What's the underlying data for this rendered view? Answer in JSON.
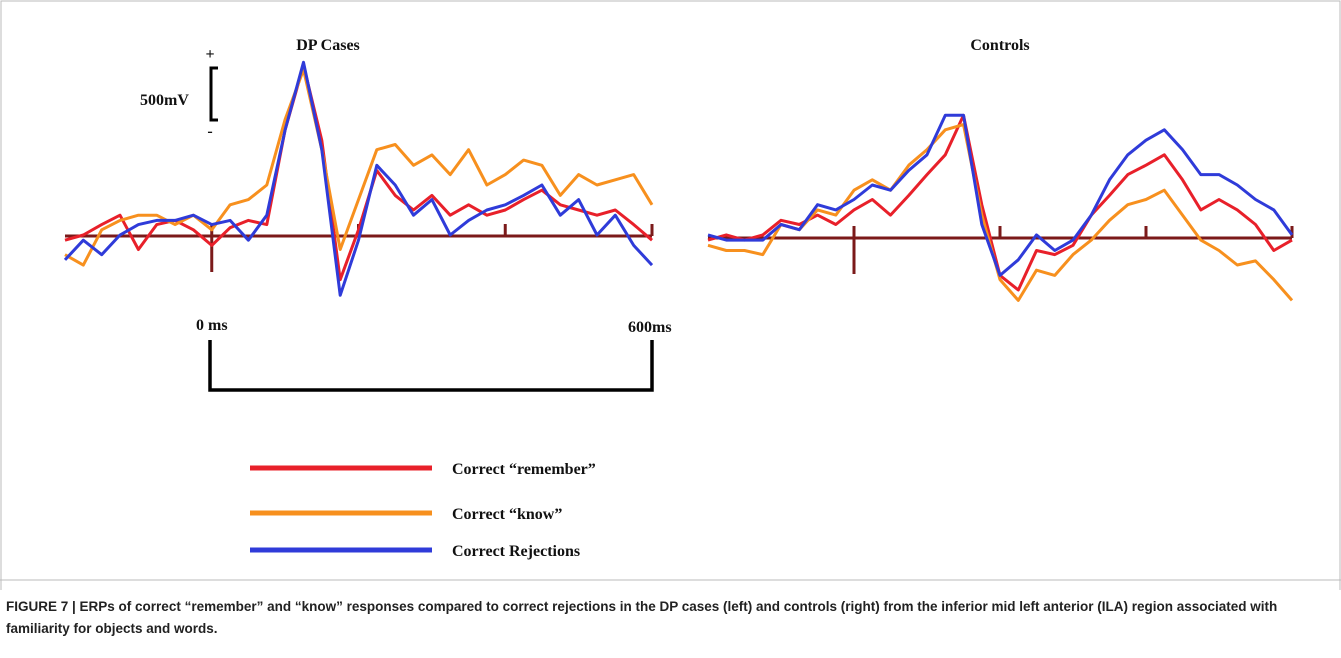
{
  "chart_data": [
    {
      "type": "line",
      "title": "DP Cases",
      "x": [
        -200,
        -175,
        -150,
        -125,
        -100,
        -75,
        -50,
        -25,
        0,
        25,
        50,
        75,
        100,
        125,
        150,
        175,
        200,
        225,
        250,
        275,
        300,
        325,
        350,
        375,
        400,
        425,
        450,
        475,
        500,
        525,
        550,
        575,
        600
      ],
      "xlim": [
        -200,
        600
      ],
      "xticks": [
        0,
        200,
        400,
        600
      ],
      "ylim": [
        -1000,
        2000
      ],
      "series": [
        {
          "name": "Correct “remember”",
          "color": "#e8202a",
          "values": [
            -40,
            10,
            110,
            200,
            -130,
            110,
            150,
            60,
            -90,
            80,
            150,
            110,
            1020,
            1640,
            920,
            -420,
            60,
            630,
            390,
            250,
            390,
            200,
            300,
            200,
            250,
            350,
            440,
            300,
            250,
            200,
            250,
            110,
            -40
          ]
        },
        {
          "name": "Correct “know”",
          "color": "#f7901e",
          "values": [
            -180,
            -280,
            60,
            150,
            200,
            200,
            110,
            200,
            60,
            300,
            350,
            490,
            1120,
            1600,
            830,
            -130,
            350,
            830,
            880,
            680,
            780,
            590,
            830,
            490,
            590,
            730,
            680,
            390,
            590,
            490,
            540,
            590,
            300
          ]
        },
        {
          "name": "Correct Rejections",
          "color": "#2f3bd9",
          "values": [
            -230,
            -40,
            -180,
            10,
            110,
            150,
            150,
            200,
            110,
            150,
            -40,
            200,
            1020,
            1670,
            830,
            -570,
            -40,
            680,
            490,
            200,
            350,
            10,
            150,
            250,
            300,
            390,
            490,
            200,
            350,
            10,
            200,
            -90,
            -280
          ]
        }
      ]
    },
    {
      "type": "line",
      "title": "Controls",
      "x": [
        -200,
        -175,
        -150,
        -125,
        -100,
        -75,
        -50,
        -25,
        0,
        25,
        50,
        75,
        100,
        125,
        150,
        175,
        200,
        225,
        250,
        275,
        300,
        325,
        350,
        375,
        400,
        425,
        450,
        475,
        500,
        525,
        550,
        575,
        600
      ],
      "xlim": [
        -200,
        600
      ],
      "xticks": [
        0,
        200,
        400,
        600
      ],
      "ylim": [
        -1000,
        2000
      ],
      "series": [
        {
          "name": "Correct “remember”",
          "color": "#e8202a",
          "values": [
            -20,
            30,
            -20,
            30,
            170,
            130,
            220,
            130,
            270,
            370,
            220,
            410,
            610,
            800,
            1180,
            320,
            -360,
            -500,
            -120,
            -160,
            -70,
            220,
            410,
            610,
            700,
            800,
            560,
            270,
            370,
            270,
            130,
            -120,
            -20
          ]
        },
        {
          "name": "Correct “know”",
          "color": "#f7901e",
          "values": [
            -70,
            -120,
            -120,
            -160,
            130,
            80,
            270,
            220,
            460,
            560,
            460,
            700,
            850,
            1040,
            1090,
            220,
            -400,
            -600,
            -310,
            -360,
            -160,
            -20,
            170,
            320,
            370,
            460,
            220,
            -20,
            -120,
            -260,
            -220,
            -400,
            -600
          ]
        },
        {
          "name": "Correct Rejections",
          "color": "#2f3bd9",
          "values": [
            30,
            -20,
            -20,
            -20,
            130,
            80,
            320,
            270,
            370,
            510,
            460,
            650,
            800,
            1180,
            1180,
            130,
            -360,
            -210,
            30,
            -120,
            -20,
            220,
            560,
            800,
            940,
            1040,
            850,
            610,
            610,
            510,
            370,
            270,
            30
          ]
        }
      ]
    }
  ],
  "scale_bar": {
    "plus": "+",
    "minus": "-",
    "voltage_label": "500mV",
    "time_start_label": "0 ms",
    "time_end_label": "600ms"
  },
  "caption": "FIGURE 7 | ERPs of correct “remember” and “know” responses compared to correct rejections in the DP cases (left) and controls (right) from the inferior mid left anterior (ILA) region associated with familiarity for objects and words."
}
